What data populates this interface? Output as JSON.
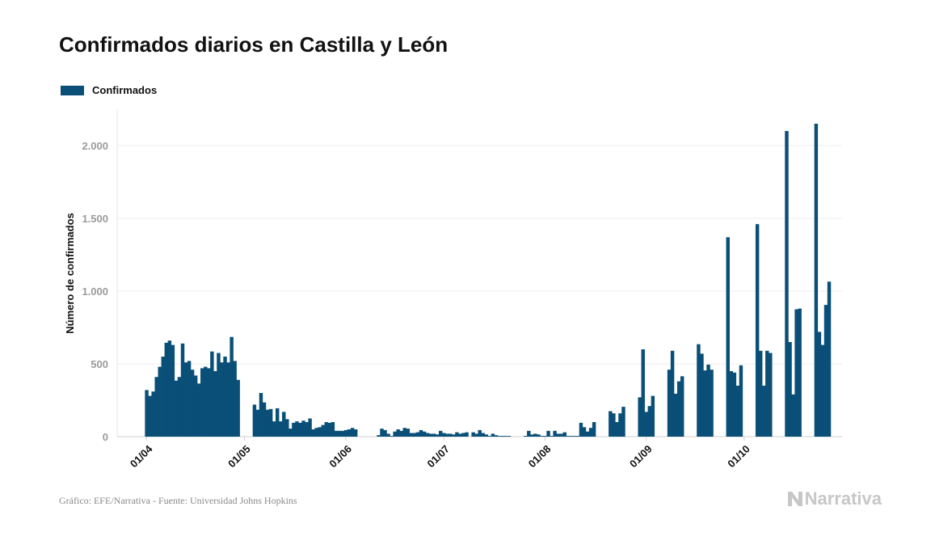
{
  "chart_data": {
    "type": "bar",
    "title": "Confirmados diarios en Castilla y León",
    "xlabel": "",
    "ylabel": "Número de confirmados",
    "ylim": [
      0,
      2250
    ],
    "yticks": [
      0,
      500,
      1000,
      1500,
      2000
    ],
    "ytick_labels": [
      "0",
      "500",
      "1.000",
      "1.500",
      "2.000"
    ],
    "xlim_days": [
      -9,
      213
    ],
    "xticks_days": [
      0,
      30,
      61,
      91,
      122,
      153,
      183
    ],
    "xtick_labels": [
      "01/04",
      "01/05",
      "01/06",
      "01/07",
      "01/08",
      "01/09",
      "01/10"
    ],
    "legend_position": "top-left",
    "series": [
      {
        "name": "Confirmados",
        "color": "#0a4f77",
        "start_day": 0,
        "values": [
          320,
          280,
          310,
          410,
          480,
          550,
          645,
          660,
          630,
          385,
          410,
          640,
          510,
          520,
          460,
          420,
          365,
          470,
          480,
          470,
          585,
          450,
          575,
          510,
          550,
          510,
          685,
          520,
          390,
          0,
          0,
          0,
          0,
          220,
          185,
          300,
          235,
          185,
          190,
          105,
          195,
          105,
          170,
          120,
          55,
          95,
          105,
          95,
          110,
          100,
          125,
          50,
          60,
          65,
          80,
          100,
          95,
          100,
          40,
          40,
          40,
          45,
          50,
          60,
          50,
          0,
          0,
          0,
          0,
          0,
          0,
          10,
          55,
          45,
          20,
          5,
          35,
          50,
          40,
          60,
          55,
          25,
          25,
          30,
          45,
          35,
          25,
          20,
          20,
          15,
          40,
          25,
          20,
          20,
          15,
          30,
          20,
          25,
          30,
          0,
          30,
          20,
          45,
          25,
          15,
          5,
          20,
          10,
          5,
          5,
          5,
          5,
          0,
          0,
          0,
          0,
          5,
          40,
          15,
          20,
          15,
          5,
          5,
          40,
          5,
          40,
          20,
          20,
          30,
          5,
          5,
          5,
          5,
          95,
          65,
          35,
          60,
          100,
          0,
          0,
          0,
          0,
          175,
          160,
          100,
          160,
          205,
          0,
          0,
          0,
          0,
          270,
          600,
          170,
          210,
          280,
          0,
          0,
          0,
          0,
          460,
          590,
          295,
          380,
          415,
          0,
          0,
          0,
          0,
          635,
          570,
          455,
          495,
          460,
          0,
          0,
          0,
          0,
          1370,
          450,
          440,
          350,
          490,
          0,
          0,
          0,
          0,
          1460,
          590,
          350,
          590,
          575,
          0,
          0,
          0,
          0,
          2100,
          650,
          290,
          875,
          880,
          0,
          0,
          0,
          0,
          2150,
          720,
          630,
          905,
          1065
        ]
      }
    ]
  },
  "legend": {
    "label": "Confirmados"
  },
  "footer": {
    "source": "Gráfico: EFE/Narrativa - Fuente: Universidad Johns Hopkins"
  },
  "brand": {
    "name": "Narrativa"
  }
}
